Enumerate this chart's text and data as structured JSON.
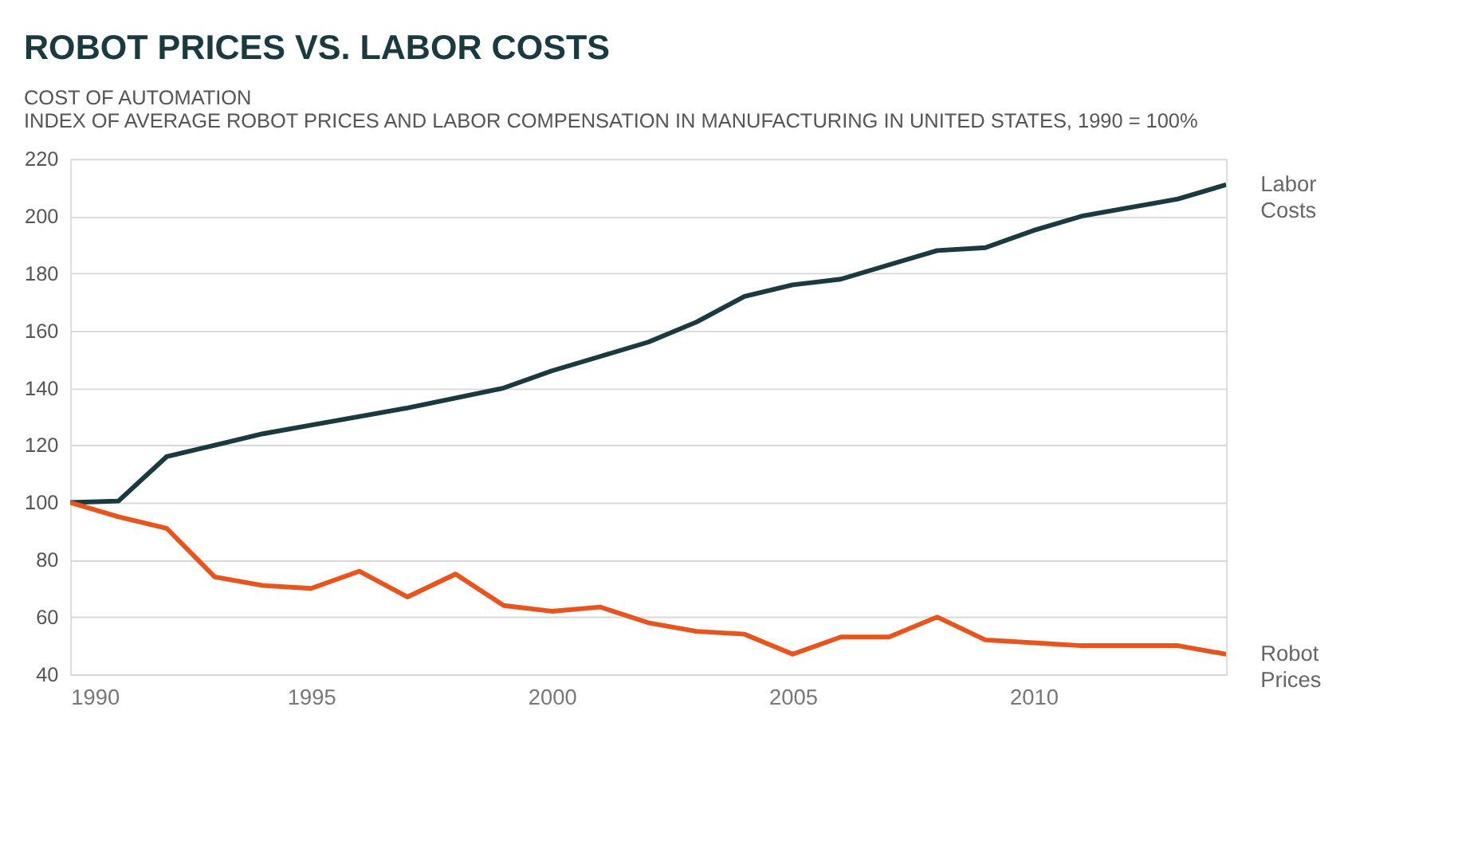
{
  "chart_data": {
    "type": "line",
    "title": "ROBOT PRICES VS. LABOR COSTS",
    "subtitle": "COST OF AUTOMATION",
    "annotations": [
      "INDEX OF AVERAGE ROBOT PRICES AND LABOR COMPENSATION IN MANUFACTURING IN UNITED STATES, 1990 = 100%"
    ],
    "x": [
      1990,
      1991,
      1992,
      1993,
      1994,
      1995,
      1996,
      1997,
      1998,
      1999,
      2000,
      2001,
      2002,
      2003,
      2004,
      2005,
      2006,
      2007,
      2008,
      2009,
      2010,
      2011,
      2012,
      2013,
      2014
    ],
    "series": [
      {
        "name": "Labor Costs",
        "color": "#1b3a3f",
        "values": [
          100,
          100.5,
          116,
          120,
          124,
          127,
          130,
          133,
          136.5,
          140,
          146,
          151,
          156,
          163,
          172,
          176,
          178,
          183,
          188,
          189,
          195,
          200,
          203,
          206,
          211
        ]
      },
      {
        "name": "Robot Prices",
        "color": "#e8541e",
        "values": [
          100,
          95,
          91,
          74,
          71,
          70,
          76,
          67,
          75,
          64,
          62,
          63.5,
          58,
          55,
          54,
          47,
          53,
          53,
          60,
          52,
          51,
          50,
          50,
          50,
          47
        ]
      }
    ],
    "xlim": [
      1990,
      2014
    ],
    "xticks": [
      1990,
      1995,
      2000,
      2005,
      2010
    ],
    "ylim": [
      40,
      220
    ],
    "yticks": [
      40,
      60,
      80,
      100,
      120,
      140,
      160,
      180,
      200,
      220
    ],
    "grid": "y",
    "legend": false,
    "marker": "none",
    "line_style": "solid"
  }
}
